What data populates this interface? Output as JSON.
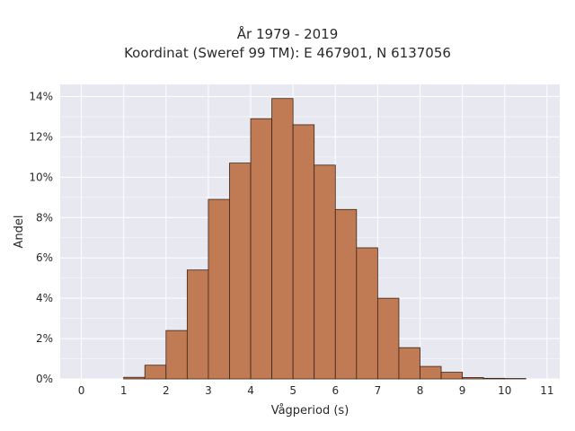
{
  "chart_data": {
    "type": "bar",
    "title_line1": "År 1979 - 2019",
    "title_line2": "Koordinat (Sweref 99 TM): E 467901, N 6137056",
    "xlabel": "Vågperiod (s)",
    "ylabel": "Andel",
    "bin_width": 0.5,
    "bins_left": [
      1.0,
      1.5,
      2.0,
      2.5,
      3.0,
      3.5,
      4.0,
      4.5,
      5.0,
      5.5,
      6.0,
      6.5,
      7.0,
      7.5,
      8.0,
      8.5,
      9.0,
      9.5,
      10.0
    ],
    "values": [
      0.08,
      0.68,
      2.4,
      5.4,
      8.9,
      10.7,
      12.9,
      13.9,
      12.6,
      10.6,
      8.4,
      6.5,
      4.0,
      1.55,
      0.62,
      0.33,
      0.07,
      0.03,
      0.02
    ],
    "xlim": [
      -0.5,
      11.3
    ],
    "ylim": [
      0,
      14.6
    ],
    "xticks": [
      0,
      1,
      2,
      3,
      4,
      5,
      6,
      7,
      8,
      9,
      10,
      11
    ],
    "yticks": [
      0,
      2,
      4,
      6,
      8,
      10,
      12,
      14
    ],
    "ytick_suffix": "%",
    "grid": true,
    "colors": {
      "bar_fill": "#c07b55",
      "bar_edge": "#3b2418",
      "plot_background": "#e8e9f0",
      "grid": "#ffffff"
    }
  }
}
